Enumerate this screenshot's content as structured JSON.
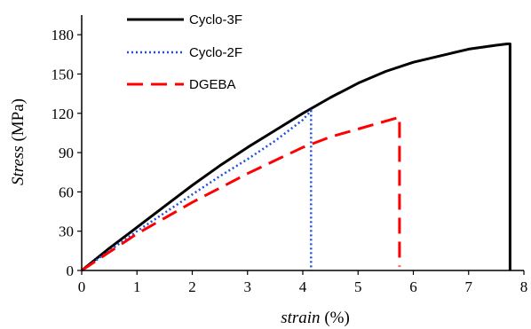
{
  "chart_data": {
    "type": "line",
    "xlabel": {
      "italic": "strain",
      "rest": " (%)"
    },
    "ylabel": {
      "italic": "Stress",
      "rest": " (MPa)"
    },
    "xlim": [
      0,
      8
    ],
    "ylim": [
      0,
      195
    ],
    "x_ticks": [
      0,
      1,
      2,
      3,
      4,
      5,
      6,
      7,
      8
    ],
    "x_tick_labels": [
      "0",
      "1",
      "2",
      "3",
      "4",
      "5",
      "6",
      "7",
      "8"
    ],
    "y_ticks": [
      0,
      30,
      60,
      90,
      120,
      150,
      180
    ],
    "y_tick_labels": [
      "0",
      "30",
      "60",
      "90",
      "120",
      "150",
      "180"
    ],
    "grid": false,
    "legend_position": "top-center",
    "series": [
      {
        "name": "Cyclo-3F",
        "color": "#000000",
        "style": "solid",
        "x": [
          0,
          0.5,
          1,
          1.5,
          2,
          2.5,
          3,
          3.5,
          4,
          4.5,
          5,
          5.5,
          6,
          6.5,
          7,
          7.5,
          7.7,
          7.75,
          7.75
        ],
        "y": [
          0,
          17,
          33,
          49,
          65,
          80,
          94,
          107,
          120,
          132,
          143,
          152,
          159,
          164,
          169,
          172,
          173,
          173,
          0
        ]
      },
      {
        "name": "Cyclo-2F",
        "color": "#1f4fe0",
        "style": "dotted",
        "x": [
          0,
          0.5,
          1,
          1.5,
          2,
          2.5,
          3,
          3.5,
          4,
          4.15,
          4.15
        ],
        "y": [
          0,
          15,
          30,
          44,
          58,
          72,
          85,
          99,
          115,
          122,
          0
        ]
      },
      {
        "name": "DGEBA",
        "color": "#ff0000",
        "style": "dashed",
        "x": [
          0,
          0.5,
          1,
          1.5,
          2,
          2.5,
          3,
          3.5,
          4,
          4.5,
          5,
          5.5,
          5.75,
          5.75
        ],
        "y": [
          0,
          14,
          28,
          40,
          52,
          63,
          74,
          84,
          94,
          102,
          108,
          114,
          117,
          3
        ]
      }
    ]
  }
}
